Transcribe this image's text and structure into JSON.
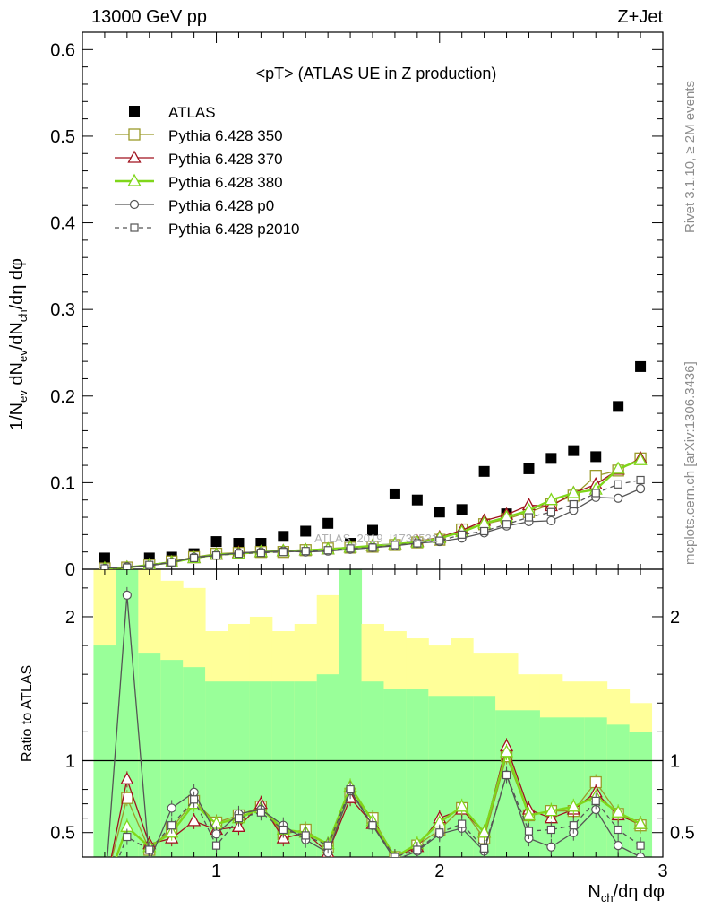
{
  "header": {
    "left": "13000 GeV pp",
    "right": "Z+Jet"
  },
  "side_labels": [
    "Rivet 3.1.10, ≥ 2M events",
    "mcplots.cern.ch [arXiv:1306.3436]"
  ],
  "watermark": "ATLAS_2019_I1736531",
  "chart_data": [
    {
      "type": "scatter",
      "title": "<pT> (ATLAS UE in Z production)",
      "ylabel_parts": [
        "1/N",
        "ev",
        " dN",
        "ev",
        "/dN",
        "ch",
        "/dη dφ"
      ],
      "xlabel_parts": [
        "N",
        "ch",
        "/dη dφ"
      ],
      "xlim": [
        0.4,
        3.0
      ],
      "ylim": [
        0,
        0.62
      ],
      "xticks": [
        1,
        2,
        3
      ],
      "yticks": [
        0,
        0.1,
        0.2,
        0.3,
        0.4,
        0.5,
        0.6
      ],
      "ytick_labels": [
        "0",
        "0.1",
        "0.2",
        "0.3",
        "0.4",
        "0.5",
        "0.6"
      ],
      "legend_position": "top-left",
      "x": [
        0.5,
        0.6,
        0.7,
        0.8,
        0.9,
        1.0,
        1.1,
        1.2,
        1.3,
        1.4,
        1.5,
        1.6,
        1.7,
        1.8,
        1.9,
        2.0,
        2.1,
        2.2,
        2.3,
        2.4,
        2.5,
        2.6,
        2.7,
        2.8,
        2.9
      ],
      "series": [
        {
          "name": "ATLAS",
          "color": "#000000",
          "marker": "filled-square",
          "line": "none",
          "values": [
            0.013,
            0.001,
            0.013,
            0.014,
            0.018,
            0.032,
            0.03,
            0.03,
            0.038,
            0.044,
            0.053,
            0.03,
            0.045,
            0.087,
            0.08,
            0.066,
            0.069,
            0.113,
            0.064,
            0.116,
            0.128,
            0.137,
            0.13,
            0.188,
            0.234
          ]
        },
        {
          "name": "Pythia 6.428 350",
          "color": "#9a9a2a",
          "marker": "open-square",
          "line": "solid",
          "values": [
            0.001,
            0.002,
            0.005,
            0.009,
            0.014,
            0.018,
            0.019,
            0.02,
            0.02,
            0.022,
            0.024,
            0.025,
            0.026,
            0.028,
            0.031,
            0.034,
            0.046,
            0.052,
            0.058,
            0.066,
            0.075,
            0.085,
            0.108,
            0.114,
            0.128
          ]
        },
        {
          "name": "Pythia 6.428 370",
          "color": "#a0121e",
          "marker": "open-triangle",
          "line": "solid",
          "values": [
            0.001,
            0.002,
            0.005,
            0.008,
            0.013,
            0.017,
            0.019,
            0.02,
            0.021,
            0.022,
            0.023,
            0.025,
            0.027,
            0.029,
            0.032,
            0.037,
            0.045,
            0.056,
            0.063,
            0.074,
            0.073,
            0.088,
            0.098,
            0.115,
            0.128
          ]
        },
        {
          "name": "Pythia 6.428 380",
          "color": "#7fd61a",
          "marker": "open-triangle",
          "line": "solid-thick",
          "values": [
            0.001,
            0.002,
            0.005,
            0.008,
            0.013,
            0.017,
            0.018,
            0.02,
            0.021,
            0.022,
            0.023,
            0.025,
            0.027,
            0.029,
            0.031,
            0.036,
            0.043,
            0.053,
            0.06,
            0.068,
            0.08,
            0.088,
            0.092,
            0.116,
            0.126
          ]
        },
        {
          "name": "Pythia 6.428 p0",
          "color": "#555555",
          "marker": "open-circle",
          "line": "solid",
          "values": [
            0.001,
            0.003,
            0.004,
            0.008,
            0.014,
            0.016,
            0.019,
            0.02,
            0.021,
            0.02,
            0.021,
            0.023,
            0.025,
            0.027,
            0.03,
            0.032,
            0.036,
            0.042,
            0.05,
            0.055,
            0.056,
            0.068,
            0.083,
            0.082,
            0.093
          ]
        },
        {
          "name": "Pythia 6.428 p2010",
          "color": "#555555",
          "marker": "open-square-small",
          "line": "dashed",
          "values": [
            0.001,
            0.002,
            0.005,
            0.008,
            0.013,
            0.016,
            0.018,
            0.019,
            0.02,
            0.021,
            0.022,
            0.024,
            0.025,
            0.028,
            0.03,
            0.033,
            0.04,
            0.044,
            0.052,
            0.06,
            0.066,
            0.075,
            0.088,
            0.098,
            0.103
          ]
        }
      ]
    },
    {
      "type": "line",
      "ylabel": "Ratio to ATLAS",
      "xlim": [
        0.4,
        3.0
      ],
      "ylim": [
        0.33,
        2.33
      ],
      "yticks": [
        0.5,
        1,
        2
      ],
      "ytick_labels": [
        "0.5",
        "1",
        "2"
      ],
      "xticks": [
        1,
        2,
        3
      ],
      "xtick_labels": [
        "1",
        "2",
        "3"
      ],
      "reference_line": 1,
      "bands": {
        "x": [
          0.5,
          0.6,
          0.7,
          0.8,
          0.9,
          1.0,
          1.1,
          1.2,
          1.3,
          1.4,
          1.5,
          1.6,
          1.7,
          1.8,
          1.9,
          2.0,
          2.1,
          2.2,
          2.3,
          2.4,
          2.5,
          2.6,
          2.7,
          2.8,
          2.9
        ],
        "stat_upper": [
          1.8,
          2.33,
          1.75,
          1.7,
          1.65,
          1.55,
          1.55,
          1.55,
          1.55,
          1.55,
          1.6,
          2.33,
          1.55,
          1.5,
          1.5,
          1.45,
          1.45,
          1.45,
          1.35,
          1.35,
          1.3,
          1.3,
          1.3,
          1.25,
          1.2
        ],
        "stat_lower": [
          0.2,
          0.2,
          0.2,
          0.2,
          0.2,
          0.2,
          0.2,
          0.2,
          0.2,
          0.2,
          0.2,
          0.2,
          0.2,
          0.2,
          0.2,
          0.2,
          0.2,
          0.2,
          0.2,
          0.2,
          0.2,
          0.2,
          0.2,
          0.2,
          0.2
        ],
        "total_upper": [
          2.33,
          2.33,
          2.33,
          2.25,
          2.2,
          1.9,
          1.95,
          2.0,
          1.9,
          1.95,
          2.15,
          2.33,
          1.95,
          1.9,
          1.85,
          1.8,
          1.85,
          1.75,
          1.75,
          1.6,
          1.6,
          1.55,
          1.55,
          1.5,
          1.4
        ],
        "total_lower": [
          0.2,
          0.2,
          0.2,
          0.2,
          0.2,
          0.2,
          0.2,
          0.2,
          0.2,
          0.2,
          0.2,
          0.2,
          0.2,
          0.2,
          0.2,
          0.2,
          0.2,
          0.2,
          0.2,
          0.2,
          0.2,
          0.2,
          0.2,
          0.2,
          0.2
        ]
      },
      "ratios": [
        {
          "name": "Pythia 6.428 350",
          "values": [
            0.12,
            0.74,
            0.38,
            0.53,
            0.72,
            0.57,
            0.62,
            0.68,
            0.49,
            0.52,
            0.4,
            0.77,
            0.6,
            0.33,
            0.41,
            0.52,
            0.67,
            0.46,
            1.03,
            0.62,
            0.65,
            0.65,
            0.85,
            0.63,
            0.55
          ]
        },
        {
          "name": "Pythia 6.428 370",
          "values": [
            0.1,
            0.87,
            0.42,
            0.46,
            0.58,
            0.52,
            0.54,
            0.7,
            0.46,
            0.5,
            0.36,
            0.74,
            0.56,
            0.33,
            0.4,
            0.6,
            0.66,
            0.5,
            1.1,
            0.66,
            0.6,
            0.66,
            0.78,
            0.62,
            0.56
          ]
        },
        {
          "name": "Pythia 6.428 380",
          "values": [
            0.1,
            0.54,
            0.4,
            0.5,
            0.7,
            0.56,
            0.6,
            0.67,
            0.52,
            0.5,
            0.42,
            0.82,
            0.58,
            0.33,
            0.42,
            0.57,
            0.68,
            0.5,
            1.06,
            0.62,
            0.65,
            0.68,
            0.75,
            0.64,
            0.56
          ]
        },
        {
          "name": "Pythia 6.428 p0",
          "values": [
            0.08,
            2.15,
            0.3,
            0.67,
            0.78,
            0.49,
            0.63,
            0.66,
            0.55,
            0.45,
            0.36,
            0.79,
            0.55,
            0.31,
            0.37,
            0.49,
            0.53,
            0.37,
            0.9,
            0.46,
            0.4,
            0.5,
            0.66,
            0.41,
            0.33
          ]
        },
        {
          "name": "Pythia 6.428 p2010",
          "values": [
            0.08,
            0.47,
            0.38,
            0.55,
            0.73,
            0.41,
            0.6,
            0.64,
            0.52,
            0.48,
            0.41,
            0.8,
            0.55,
            0.33,
            0.38,
            0.5,
            0.56,
            0.39,
            0.9,
            0.51,
            0.52,
            0.55,
            0.72,
            0.52,
            0.41
          ]
        }
      ]
    }
  ]
}
